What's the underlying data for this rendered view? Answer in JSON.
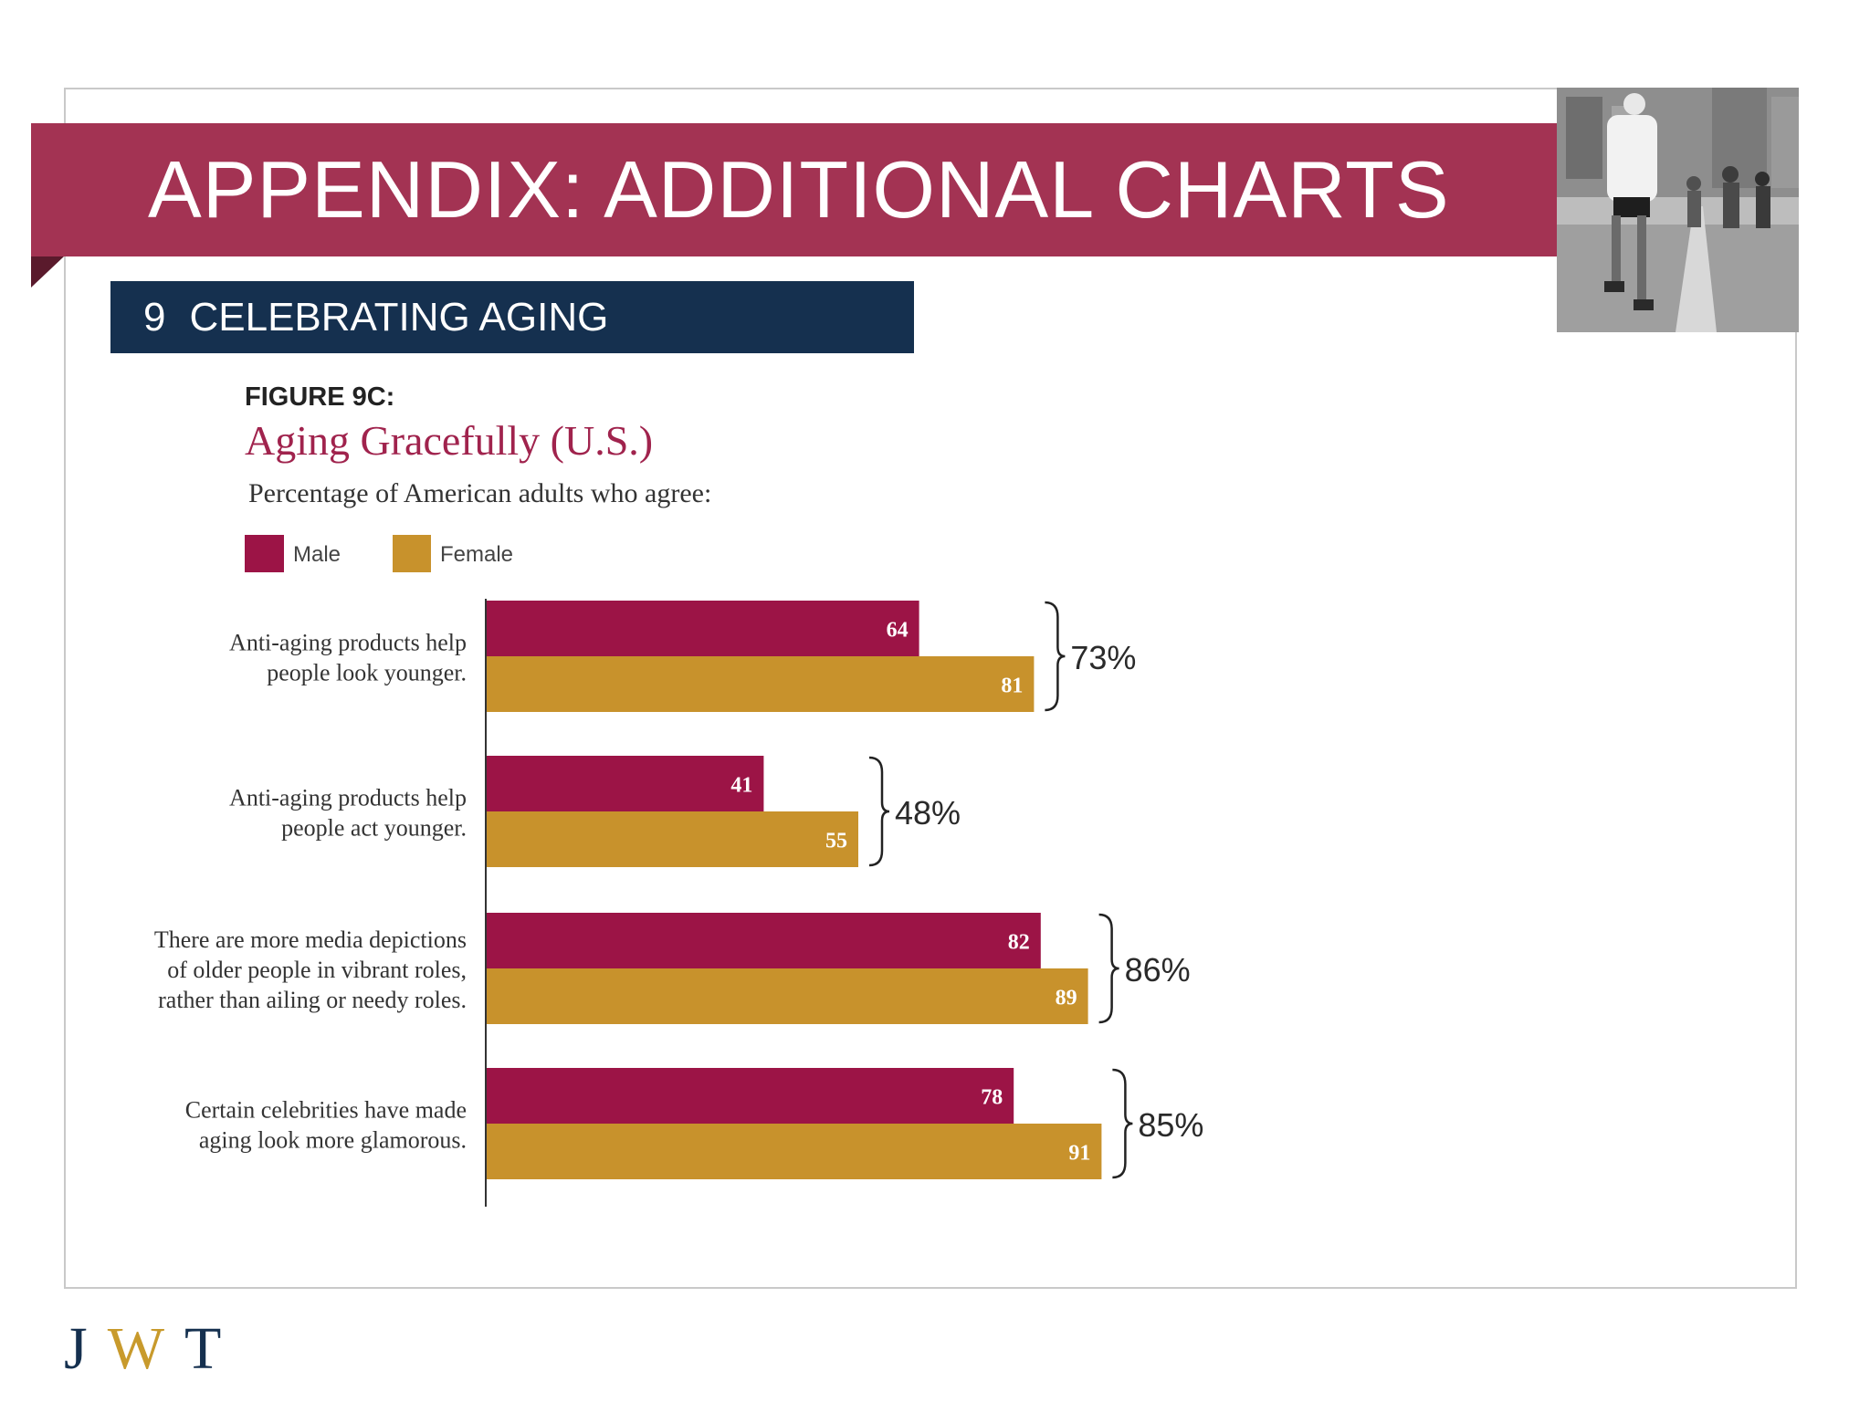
{
  "slide": {
    "title": "APPENDIX: ADDITIONAL CHARTS",
    "section_number": "9",
    "section_title": "CELEBRATING AGING",
    "logo": {
      "j": "J",
      "w": "W",
      "t": "T"
    }
  },
  "colors": {
    "banner": "#a33353",
    "section_bar": "#15304f",
    "male": "#9c1446",
    "female": "#c8922c",
    "figure_title": "#a0234d",
    "logo_navy": "#15304f",
    "logo_gold": "#c89a2c"
  },
  "photo": {
    "icon": "marathon-runners-photo"
  },
  "chart_data": {
    "type": "bar",
    "orientation": "horizontal",
    "figure_label": "FIGURE 9C:",
    "title": "Aging Gracefully (U.S.)",
    "subtitle": "Percentage of American adults who agree:",
    "categories": [
      [
        "Anti-aging products help",
        "people look younger."
      ],
      [
        "Anti-aging products help",
        "people act younger."
      ],
      [
        "There are more media depictions",
        "of older people in vibrant roles,",
        "rather than ailing or needy roles."
      ],
      [
        "Certain celebrities have made",
        "aging look more glamorous."
      ]
    ],
    "series": [
      {
        "name": "Male",
        "values": [
          64,
          41,
          82,
          78
        ]
      },
      {
        "name": "Female",
        "values": [
          81,
          55,
          89,
          91
        ]
      }
    ],
    "totals": [
      "73%",
      "48%",
      "86%",
      "85%"
    ],
    "xlim": [
      0,
      100
    ],
    "grid": false,
    "legend_position": "top-left"
  }
}
